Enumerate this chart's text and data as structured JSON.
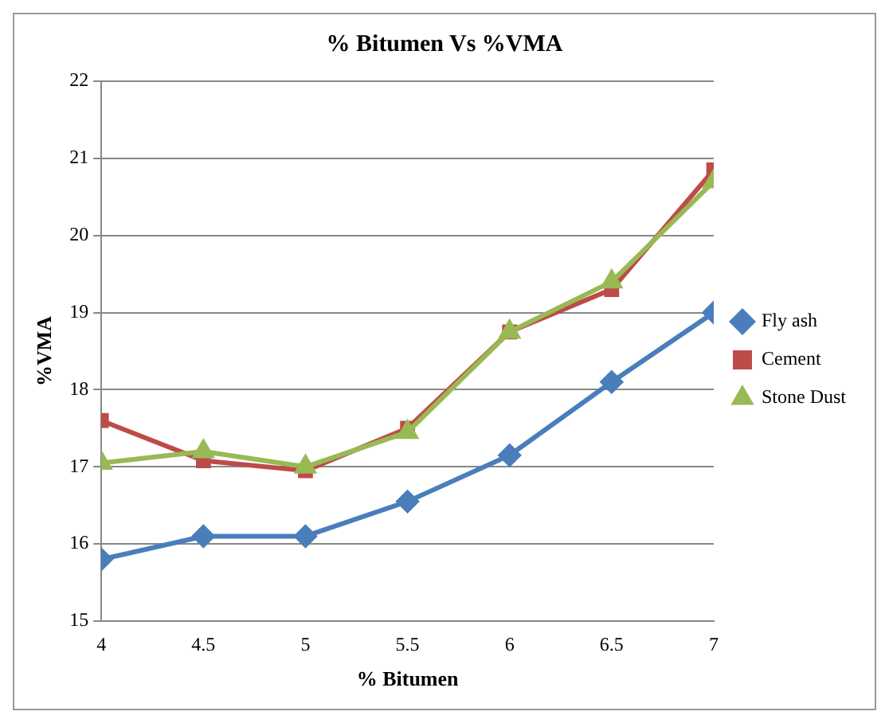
{
  "chart_data": {
    "type": "line",
    "title": "% Bitumen Vs %VMA",
    "xlabel": "% Bitumen",
    "ylabel": "%VMA",
    "x": [
      4,
      4.5,
      5,
      5.5,
      6,
      6.5,
      7
    ],
    "series": [
      {
        "name": "Fly ash",
        "color": "#4a7ebb",
        "marker": "diamond",
        "values": [
          15.8,
          16.1,
          16.1,
          16.55,
          17.15,
          18.1,
          19.0
        ]
      },
      {
        "name": "Cement",
        "color": "#be4b48",
        "marker": "square",
        "values": [
          17.6,
          17.08,
          16.95,
          17.5,
          18.75,
          19.3,
          20.85
        ]
      },
      {
        "name": "Stone Dust",
        "color": "#98b954",
        "marker": "triangle",
        "values": [
          17.05,
          17.2,
          17.0,
          17.45,
          18.75,
          19.4,
          20.7
        ]
      }
    ],
    "xlim": [
      4,
      7
    ],
    "xticks": [
      4,
      4.5,
      5,
      5.5,
      6,
      6.5,
      7
    ],
    "ylim": [
      15,
      22
    ],
    "yticks": [
      15,
      16,
      17,
      18,
      19,
      20,
      21,
      22
    ],
    "grid": "y",
    "legend": "right",
    "line_style": "solid"
  }
}
